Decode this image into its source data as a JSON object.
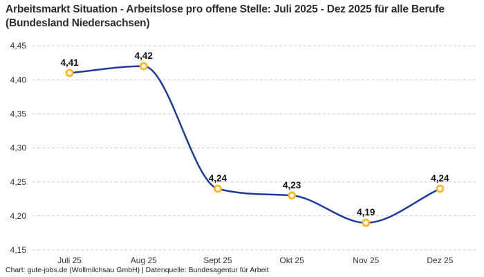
{
  "header": {
    "title": "Arbeitsmarkt Situation - Arbeitslose pro offene Stelle: Juli 2025 - Dez 2025 für alle Berufe (Bundesland Niedersachsen)"
  },
  "footer": {
    "credit": "Chart: gute-jobs.de (Wollmilchsau GmbH) | Datenquelle: Bundesagentur für Arbeit"
  },
  "chart_data": {
    "type": "line",
    "title": "Arbeitsmarkt Situation - Arbeitslose pro offene Stelle: Juli 2025 - Dez 2025 für alle Berufe (Bundesland Niedersachsen)",
    "categories": [
      "Juli 25",
      "Aug 25",
      "Sept 25",
      "Okt 25",
      "Nov 25",
      "Dez 25"
    ],
    "values": [
      4.41,
      4.42,
      4.24,
      4.23,
      4.19,
      4.24
    ],
    "point_labels": [
      "4,41",
      "4,42",
      "4,24",
      "4,23",
      "4,19",
      "4,24"
    ],
    "ytick_values": [
      4.45,
      4.4,
      4.35,
      4.3,
      4.25,
      4.2,
      4.15
    ],
    "ytick_labels": [
      "4,45",
      "4,40",
      "4,35",
      "4,30",
      "4,25",
      "4,20",
      "4,15"
    ],
    "ylim": [
      4.15,
      4.45
    ],
    "xlabel": "",
    "ylabel": "",
    "grid": "horizontal-dashed",
    "legend": "none",
    "curve": "monotone",
    "colors": {
      "line": "#1e3a9f",
      "marker_ring": "#fdb71c",
      "marker_fill": "#ffffff",
      "grid": "#cccccc",
      "title": "#2d2d2d",
      "tick": "#333333",
      "point_label": "#111111",
      "footer": "#222222",
      "background": "#ffffff"
    }
  }
}
